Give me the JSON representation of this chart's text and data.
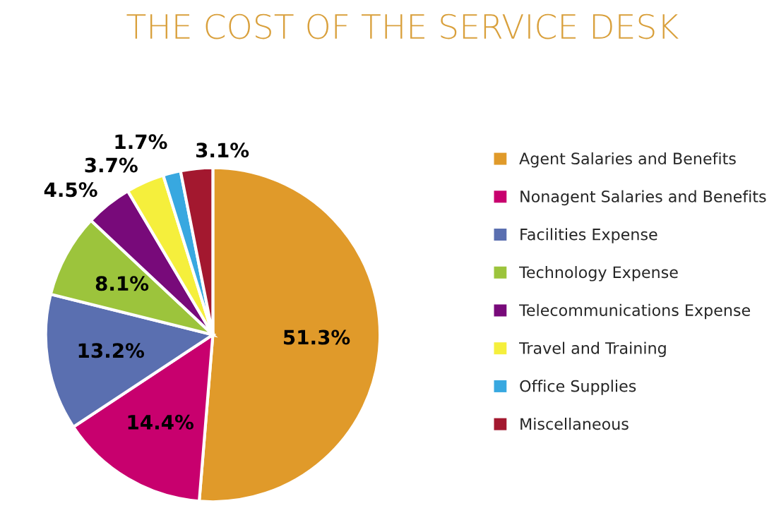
{
  "chart_data": {
    "type": "pie",
    "title": "THE COST OF THE SERVICE DESK",
    "categories": [
      "Agent Salaries and Benefits",
      "Nonagent Salaries and Benefits",
      "Facilities Expense",
      "Technology Expense",
      "Telecommunications Expense",
      "Travel and Training",
      "Office Supplies",
      "Miscellaneous"
    ],
    "values": [
      51.3,
      14.4,
      13.2,
      8.1,
      4.5,
      3.7,
      1.7,
      3.1
    ],
    "colors": [
      "#e09a2a",
      "#c8006e",
      "#5a6fb0",
      "#9cc43c",
      "#780a7a",
      "#f5ef3c",
      "#38a8e0",
      "#a3182f"
    ],
    "value_labels": [
      "51.3%",
      "14.4%",
      "13.2%",
      "8.1%",
      "4.5%",
      "3.7%",
      "1.7%",
      "3.1%"
    ],
    "legend": "right"
  }
}
